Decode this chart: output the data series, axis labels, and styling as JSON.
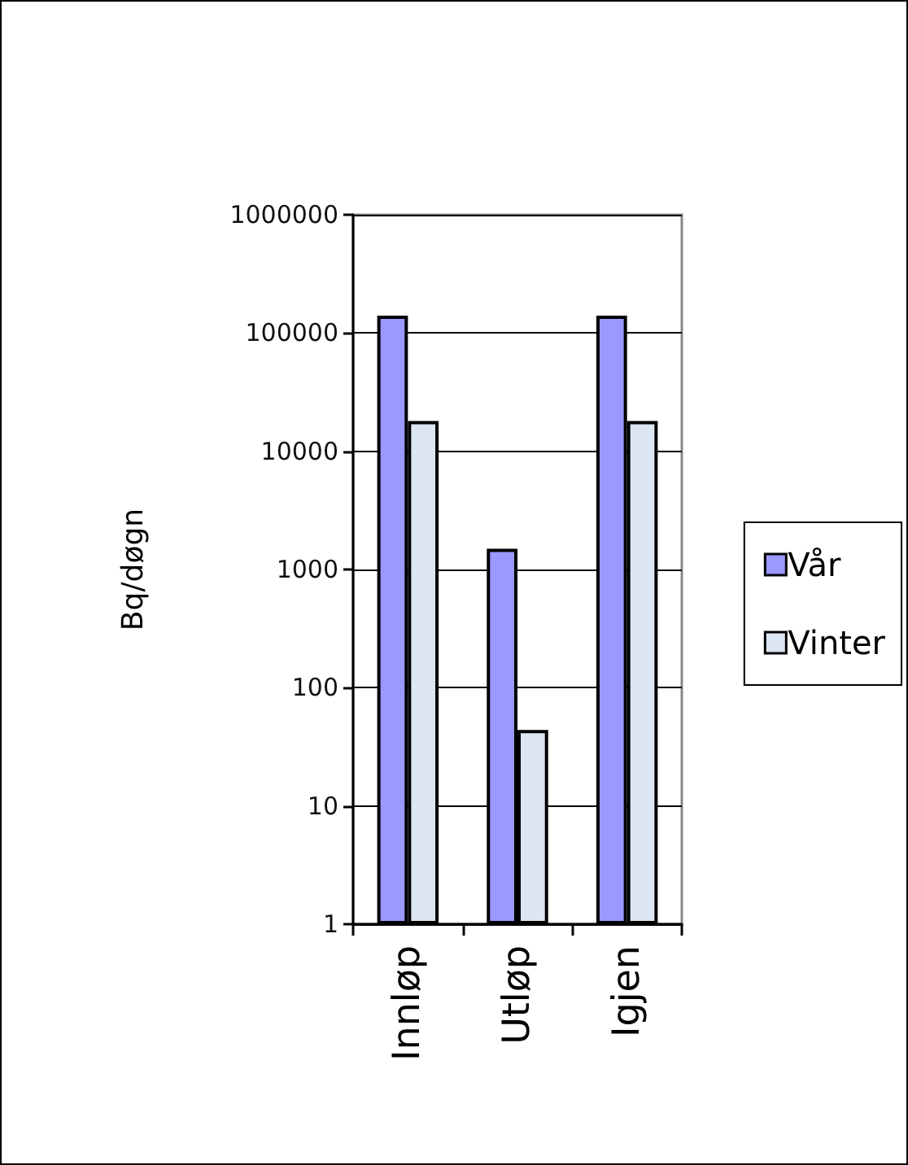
{
  "chart_data": {
    "type": "bar",
    "ylabel": "Bq/døgn",
    "categories": [
      "Innløp",
      "Utløp",
      "Igjen"
    ],
    "series": [
      {
        "name": "Vår",
        "color": "#9999ff",
        "values": [
          140000,
          1500,
          140000
        ]
      },
      {
        "name": "Vinter",
        "color": "#dce6f2",
        "values": [
          18000,
          44,
          18000
        ]
      }
    ],
    "log": true,
    "ylim": [
      1,
      1000000
    ],
    "yticks": [
      1,
      10,
      100,
      1000,
      10000,
      100000,
      1000000
    ],
    "grid": "y",
    "legend": "right"
  }
}
